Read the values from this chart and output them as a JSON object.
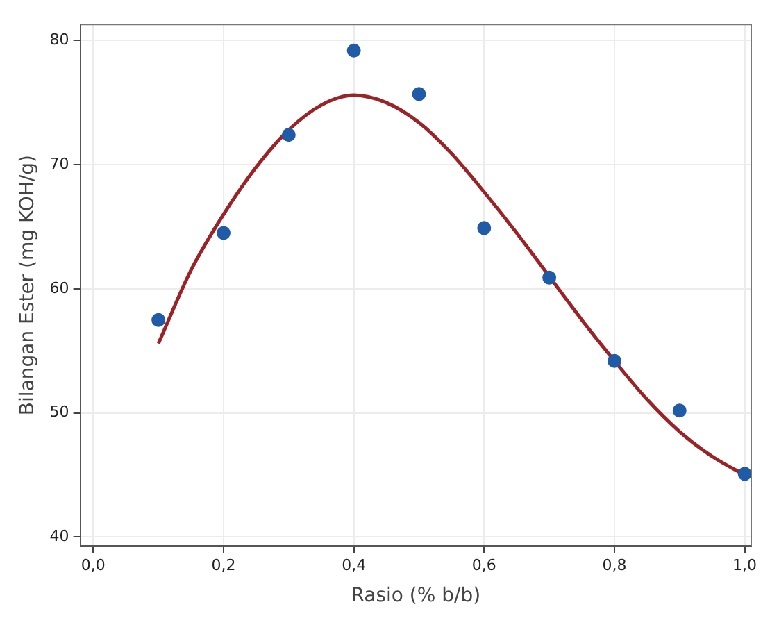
{
  "chart_data": {
    "type": "scatter",
    "xlabel": "Rasio (% b/b)",
    "ylabel": "Bilangan Ester (mg KOH/g)",
    "xlim": [
      -0.02,
      1.01
    ],
    "xticks": [
      {
        "value": 0,
        "label": "0,0"
      },
      {
        "value": 0.2,
        "label": "0,2"
      },
      {
        "value": 0.4,
        "label": "0,4"
      },
      {
        "value": 0.6,
        "label": "0,6"
      },
      {
        "value": 0.8,
        "label": "0,8"
      },
      {
        "value": 1,
        "label": "1,0"
      }
    ],
    "ylim": [
      39.3,
      81.3
    ],
    "yticks": [
      40,
      50,
      60,
      70,
      80
    ],
    "grid": true,
    "marker": "circle",
    "series": [
      {
        "type": "scatter",
        "color": "#1f5ba6",
        "x": [
          0.1,
          0.2,
          0.3,
          0.4,
          0.5,
          0.6,
          0.7,
          0.8,
          0.9,
          1.0
        ],
        "values": [
          57.5,
          64.5,
          72.4,
          79.2,
          75.7,
          64.9,
          60.9,
          54.2,
          50.2,
          45.1
        ]
      },
      {
        "type": "line",
        "color": "#9b2226",
        "line_style": "solid",
        "marker": "none",
        "x": [
          0.1,
          0.15,
          0.2,
          0.25,
          0.3,
          0.35,
          0.4,
          0.45,
          0.5,
          0.55,
          0.6,
          0.65,
          0.7,
          0.75,
          0.8,
          0.85,
          0.9,
          0.95,
          1.0
        ],
        "values": [
          55.6,
          61.5,
          66.0,
          69.8,
          72.8,
          74.8,
          75.6,
          75.0,
          73.4,
          70.9,
          67.8,
          64.5,
          61.0,
          57.5,
          54.2,
          51.1,
          48.5,
          46.5,
          45.0
        ]
      }
    ]
  }
}
